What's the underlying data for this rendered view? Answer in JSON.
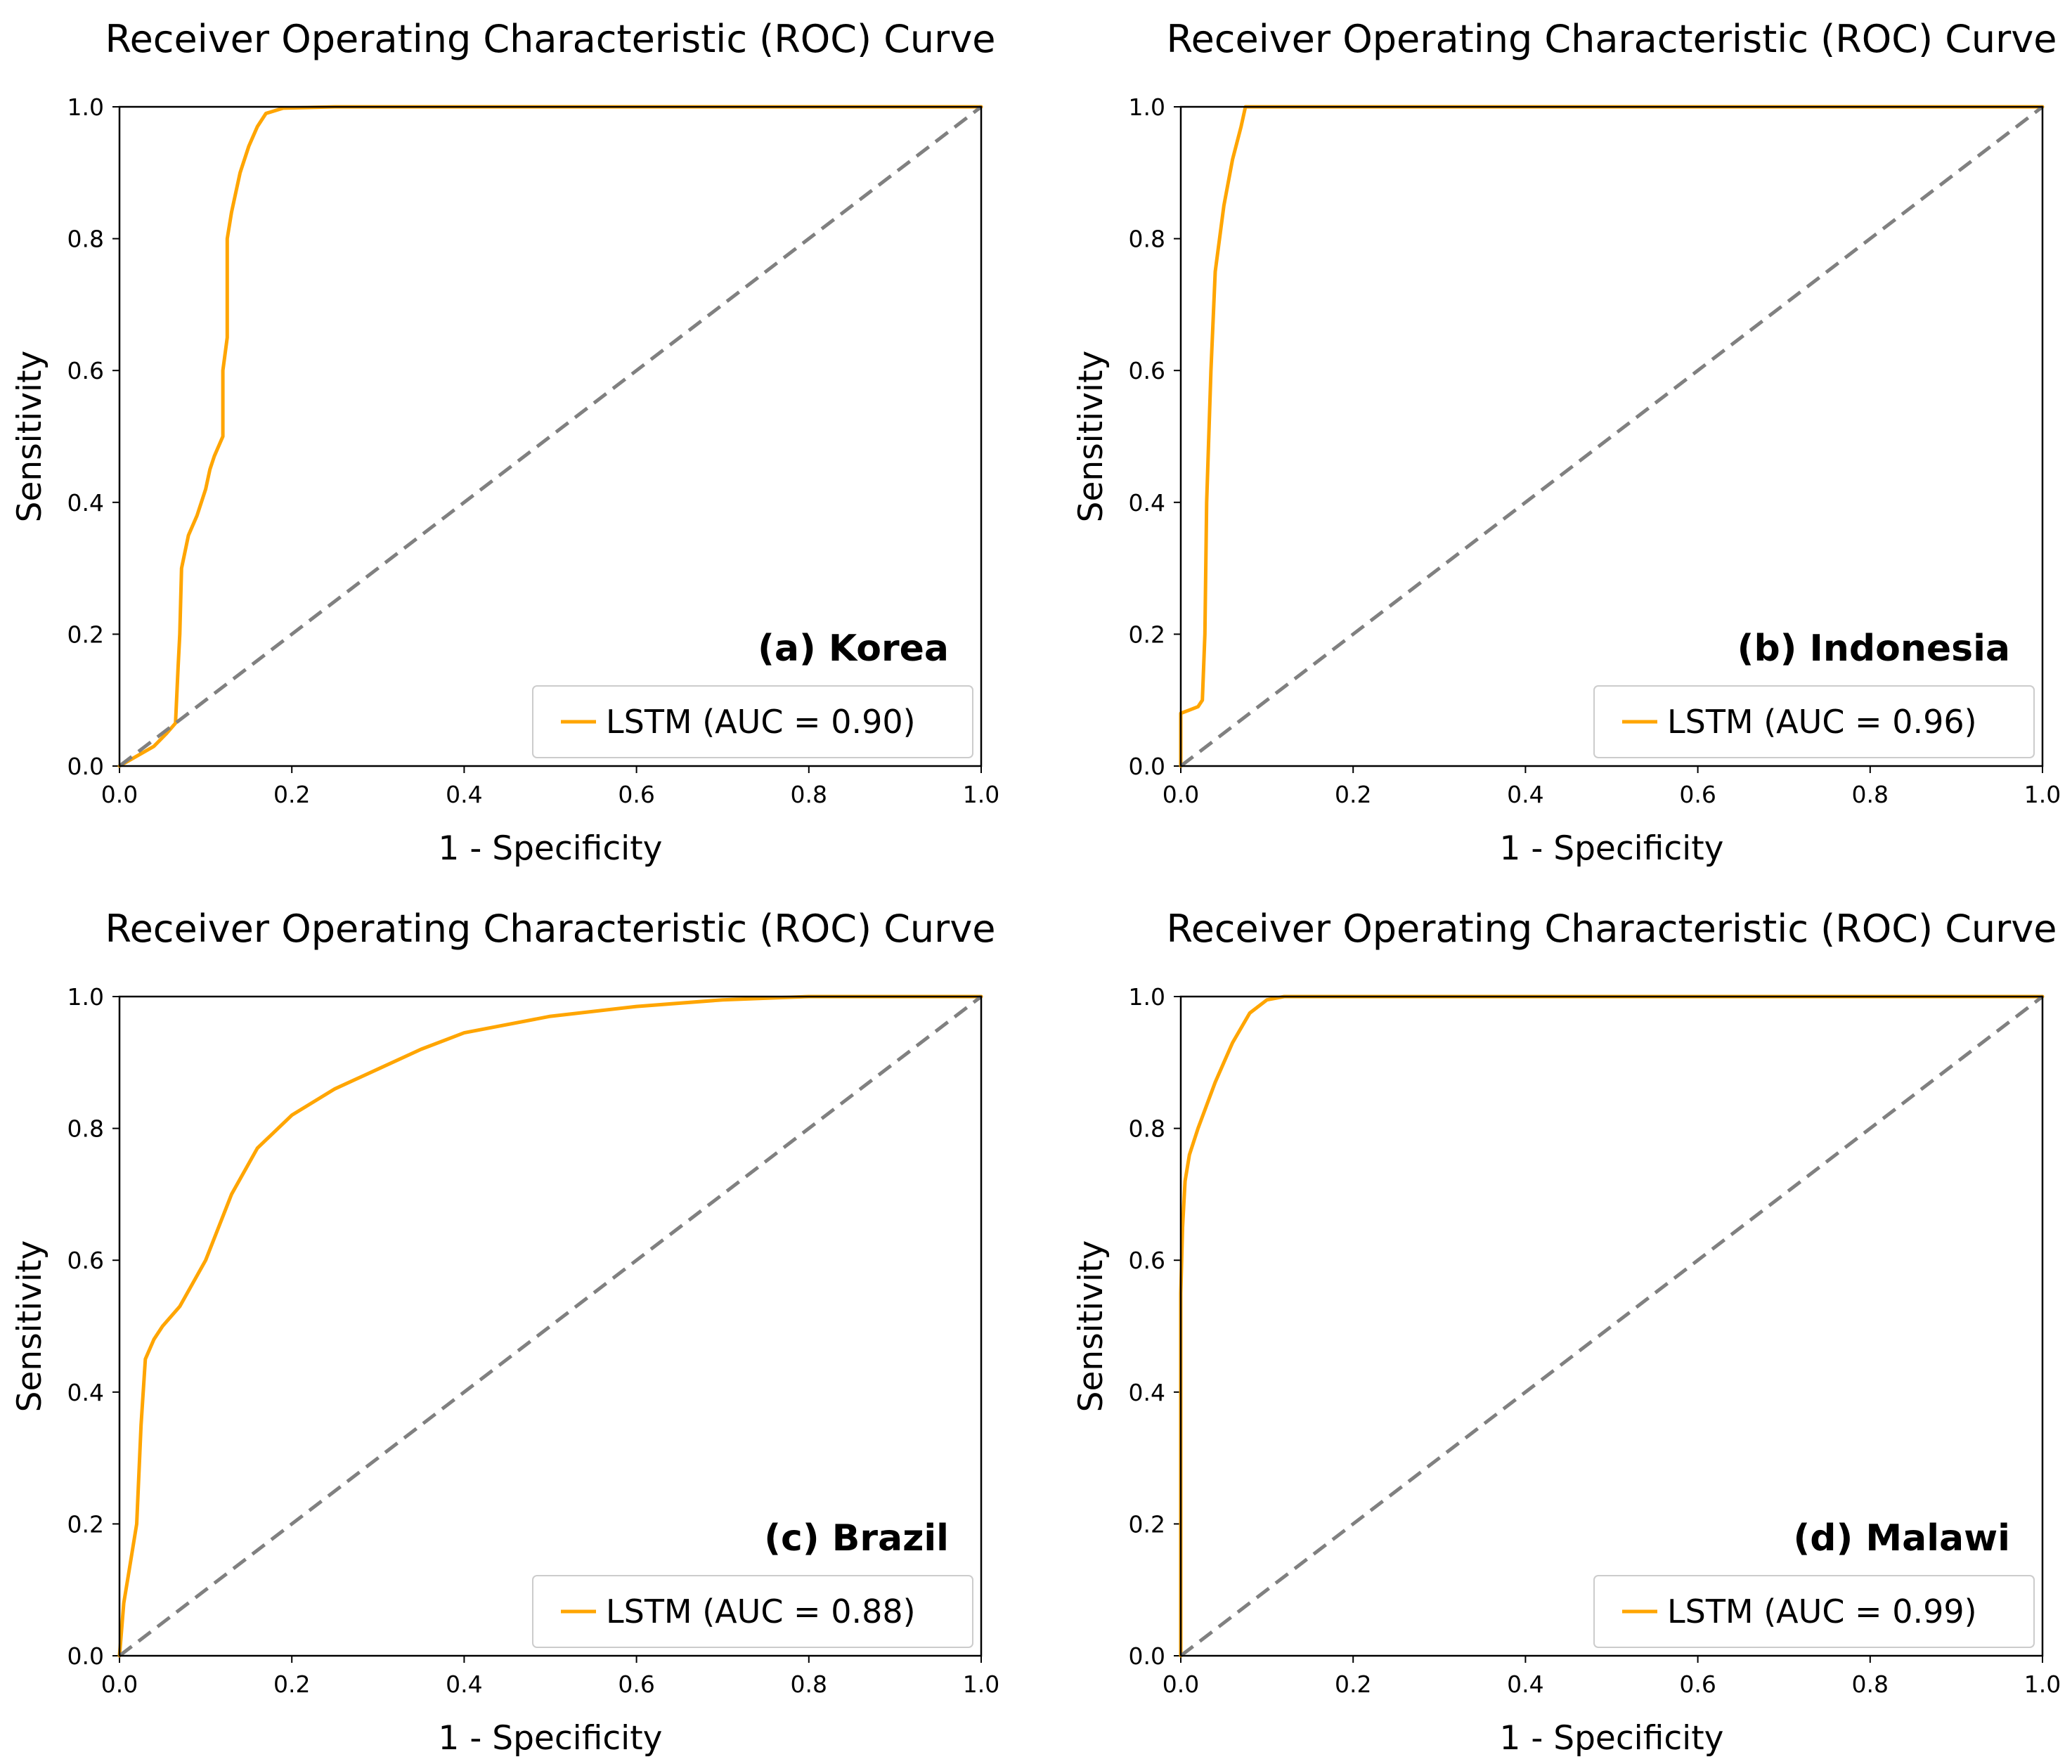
{
  "figure_caption": "",
  "chart_data": [
    {
      "type": "line",
      "title": "Receiver Operating Characteristic (ROC) Curve",
      "xlabel": "1 - Specificity",
      "ylabel": "Sensitivity",
      "xlim": [
        0.0,
        1.0
      ],
      "ylim": [
        0.0,
        1.0
      ],
      "xticks": [
        "0.0",
        "0.2",
        "0.4",
        "0.6",
        "0.8",
        "1.0"
      ],
      "yticks": [
        "0.0",
        "0.2",
        "0.4",
        "0.6",
        "0.8",
        "1.0"
      ],
      "panel_label": "(a) Korea",
      "legend_location": "lower-right",
      "colors": {
        "roc": "#FFA500",
        "chance": "#808080"
      },
      "series": [
        {
          "name": "LSTM (AUC = 0.90)",
          "style": "solid",
          "x": [
            0.0,
            0.02,
            0.04,
            0.055,
            0.065,
            0.068,
            0.07,
            0.072,
            0.08,
            0.09,
            0.1,
            0.105,
            0.11,
            0.12,
            0.12,
            0.125,
            0.125,
            0.13,
            0.135,
            0.14,
            0.15,
            0.16,
            0.17,
            0.19,
            0.25,
            1.0
          ],
          "y": [
            0.0,
            0.015,
            0.03,
            0.05,
            0.065,
            0.15,
            0.2,
            0.3,
            0.35,
            0.38,
            0.42,
            0.45,
            0.47,
            0.5,
            0.6,
            0.65,
            0.8,
            0.84,
            0.87,
            0.9,
            0.94,
            0.97,
            0.99,
            0.998,
            1.0,
            1.0
          ]
        },
        {
          "name": "chance",
          "style": "dashed",
          "x": [
            0.0,
            1.0
          ],
          "y": [
            0.0,
            1.0
          ]
        }
      ]
    },
    {
      "type": "line",
      "title": "Receiver Operating Characteristic (ROC) Curve",
      "xlabel": "1 - Specificity",
      "ylabel": "Sensitivity",
      "xlim": [
        0.0,
        1.0
      ],
      "ylim": [
        0.0,
        1.0
      ],
      "xticks": [
        "0.0",
        "0.2",
        "0.4",
        "0.6",
        "0.8",
        "1.0"
      ],
      "yticks": [
        "0.0",
        "0.2",
        "0.4",
        "0.6",
        "0.8",
        "1.0"
      ],
      "panel_label": "(b) Indonesia",
      "legend_location": "lower-right",
      "colors": {
        "roc": "#FFA500",
        "chance": "#808080"
      },
      "series": [
        {
          "name": "LSTM (AUC = 0.96)",
          "style": "solid",
          "x": [
            0.0,
            0.0,
            0.01,
            0.02,
            0.025,
            0.028,
            0.03,
            0.035,
            0.04,
            0.05,
            0.06,
            0.07,
            0.075,
            1.0
          ],
          "y": [
            0.0,
            0.08,
            0.085,
            0.09,
            0.1,
            0.2,
            0.4,
            0.6,
            0.75,
            0.85,
            0.92,
            0.97,
            1.0,
            1.0
          ]
        },
        {
          "name": "chance",
          "style": "dashed",
          "x": [
            0.0,
            1.0
          ],
          "y": [
            0.0,
            1.0
          ]
        }
      ]
    },
    {
      "type": "line",
      "title": "Receiver Operating Characteristic (ROC) Curve",
      "xlabel": "1 - Specificity",
      "ylabel": "Sensitivity",
      "xlim": [
        0.0,
        1.0
      ],
      "ylim": [
        0.0,
        1.0
      ],
      "xticks": [
        "0.0",
        "0.2",
        "0.4",
        "0.6",
        "0.8",
        "1.0"
      ],
      "yticks": [
        "0.0",
        "0.2",
        "0.4",
        "0.6",
        "0.8",
        "1.0"
      ],
      "panel_label": "(c) Brazil",
      "legend_location": "lower-right",
      "colors": {
        "roc": "#FFA500",
        "chance": "#808080"
      },
      "series": [
        {
          "name": "LSTM (AUC = 0.88)",
          "style": "solid",
          "x": [
            0.0,
            0.005,
            0.01,
            0.015,
            0.02,
            0.025,
            0.03,
            0.04,
            0.05,
            0.07,
            0.1,
            0.13,
            0.16,
            0.2,
            0.25,
            0.3,
            0.35,
            0.4,
            0.5,
            0.6,
            0.7,
            0.8,
            0.9,
            1.0
          ],
          "y": [
            0.0,
            0.08,
            0.12,
            0.16,
            0.2,
            0.35,
            0.45,
            0.48,
            0.5,
            0.53,
            0.6,
            0.7,
            0.77,
            0.82,
            0.86,
            0.89,
            0.92,
            0.945,
            0.97,
            0.985,
            0.995,
            1.0,
            1.0,
            1.0
          ]
        },
        {
          "name": "chance",
          "style": "dashed",
          "x": [
            0.0,
            1.0
          ],
          "y": [
            0.0,
            1.0
          ]
        }
      ]
    },
    {
      "type": "line",
      "title": "Receiver Operating Characteristic (ROC) Curve",
      "xlabel": "1 - Specificity",
      "ylabel": "Sensitivity",
      "xlim": [
        0.0,
        1.0
      ],
      "ylim": [
        0.0,
        1.0
      ],
      "xticks": [
        "0.0",
        "0.2",
        "0.4",
        "0.6",
        "0.8",
        "1.0"
      ],
      "yticks": [
        "0.0",
        "0.2",
        "0.4",
        "0.6",
        "0.8",
        "1.0"
      ],
      "panel_label": "(d) Malawi",
      "legend_location": "lower-right",
      "colors": {
        "roc": "#FFA500",
        "chance": "#808080"
      },
      "series": [
        {
          "name": "LSTM (AUC = 0.99)",
          "style": "solid",
          "x": [
            0.0,
            0.0,
            0.002,
            0.005,
            0.01,
            0.02,
            0.04,
            0.06,
            0.08,
            0.1,
            0.12,
            1.0
          ],
          "y": [
            0.0,
            0.55,
            0.65,
            0.72,
            0.76,
            0.8,
            0.87,
            0.93,
            0.975,
            0.995,
            1.0,
            1.0
          ]
        },
        {
          "name": "chance",
          "style": "dashed",
          "x": [
            0.0,
            1.0
          ],
          "y": [
            0.0,
            1.0
          ]
        }
      ]
    }
  ]
}
